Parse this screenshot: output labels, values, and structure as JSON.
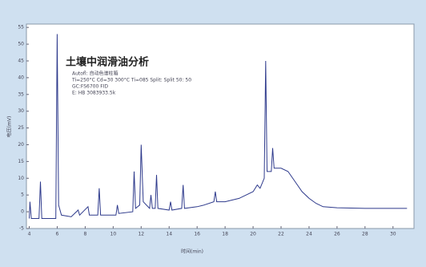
{
  "chart_data": {
    "type": "line",
    "title": "土壤中润滑油分析",
    "annotations": [
      "Autofl: 自动色谱柱箱",
      "Ti=250°C Cd=30 300°C Ti=085 Split: Split 50: 50",
      "GC:FS6700 FID",
      "E: HB 3083933.5k"
    ],
    "x_label": "时间(min)",
    "y_label": "电压(mV)",
    "x": [
      4.0,
      4.05,
      4.15,
      4.7,
      4.8,
      4.9,
      5.9,
      6.0,
      6.1,
      6.3,
      7.0,
      7.5,
      7.6,
      8.2,
      8.3,
      8.9,
      9.0,
      9.1,
      10.2,
      10.3,
      10.4,
      11.4,
      11.5,
      11.6,
      11.9,
      12.0,
      12.15,
      12.6,
      12.7,
      12.8,
      13.0,
      13.1,
      13.2,
      14.0,
      14.1,
      14.2,
      14.9,
      15.0,
      15.1,
      16.0,
      16.5,
      17.2,
      17.3,
      17.4,
      18.0,
      19.0,
      20.0,
      20.3,
      20.5,
      20.8,
      20.9,
      21.0,
      21.3,
      21.4,
      21.5,
      22.0,
      22.5,
      23.0,
      23.5,
      24.0,
      24.5,
      25.0,
      26.0,
      28.0,
      30.0,
      31.0
    ],
    "series": [
      {
        "name": "FID",
        "color": "#2e3a8c",
        "values": [
          -2,
          3,
          -2,
          -2,
          9,
          -2,
          -2,
          53,
          2,
          -1,
          -1.5,
          0.5,
          -1,
          1.5,
          -1,
          -1,
          7,
          -1,
          -1,
          2,
          -0.5,
          0,
          12,
          1,
          2,
          20,
          3,
          1,
          5,
          1,
          1,
          11,
          1,
          0.5,
          3,
          0.5,
          1,
          8,
          1,
          1.5,
          2,
          3,
          6,
          3,
          3,
          4,
          6,
          8,
          7,
          10,
          45,
          12,
          12,
          19,
          13,
          13,
          12,
          9,
          6,
          4,
          2.5,
          1.5,
          1.2,
          1,
          1,
          1
        ]
      }
    ],
    "xlim": [
      3.8,
      31.5
    ],
    "ylim": [
      -5,
      56
    ],
    "xticks": [
      4,
      6,
      8,
      10,
      12,
      14,
      16,
      18,
      20,
      22,
      24,
      26,
      28,
      30
    ],
    "yticks": [
      -5,
      0,
      5,
      10,
      15,
      20,
      25,
      30,
      35,
      40,
      45,
      50,
      55
    ]
  }
}
